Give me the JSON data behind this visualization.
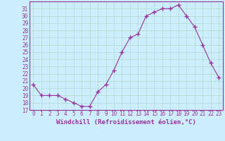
{
  "x": [
    0,
    1,
    2,
    3,
    4,
    5,
    6,
    7,
    8,
    9,
    10,
    11,
    12,
    13,
    14,
    15,
    16,
    17,
    18,
    19,
    20,
    21,
    22,
    23
  ],
  "y": [
    20.5,
    19,
    19,
    19,
    18.5,
    18,
    17.5,
    17.5,
    19.5,
    20.5,
    22.5,
    25,
    27,
    27.5,
    30,
    30.5,
    31,
    31,
    31.5,
    30,
    28.5,
    26,
    23.5,
    21.5
  ],
  "line_color": "#993399",
  "marker": "+",
  "markersize": 4,
  "linewidth": 0.8,
  "xlabel": "Windchill (Refroidissement éolien,°C)",
  "xlabel_fontsize": 6.5,
  "background_color": "#cceeff",
  "grid_color": "#aaddcc",
  "xlim": [
    -0.5,
    23.5
  ],
  "ylim": [
    17,
    32
  ],
  "yticks": [
    17,
    18,
    19,
    20,
    21,
    22,
    23,
    24,
    25,
    26,
    27,
    28,
    29,
    30,
    31
  ],
  "xticks": [
    0,
    1,
    2,
    3,
    4,
    5,
    6,
    7,
    8,
    9,
    10,
    11,
    12,
    13,
    14,
    15,
    16,
    17,
    18,
    19,
    20,
    21,
    22,
    23
  ],
  "tick_fontsize": 5.5,
  "tick_color": "#993399",
  "axis_color": "#993399",
  "xlabel_fontweight": "bold"
}
